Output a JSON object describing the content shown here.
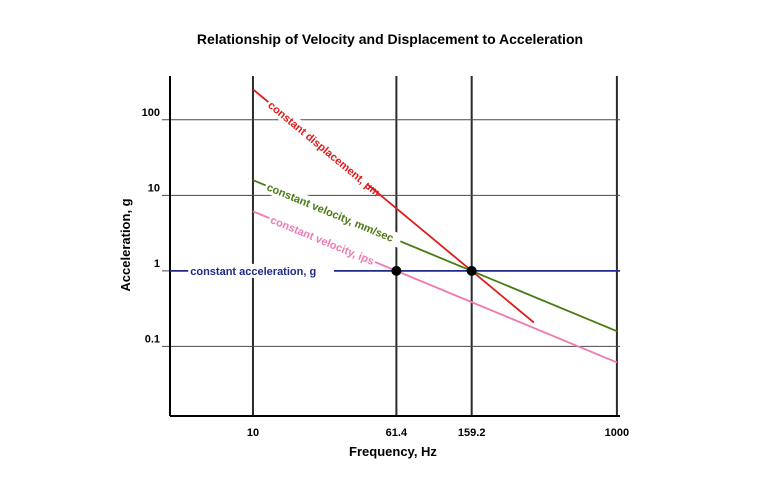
{
  "chart_data": {
    "type": "line",
    "title": "Relationship of Velocity and Displacement to Acceleration",
    "xlabel": "Frequency, Hz",
    "ylabel": "Acceleration, g",
    "x_scale": "log",
    "y_scale": "log",
    "xlim": [
      3.5,
      1040
    ],
    "ylim": [
      0.012,
      380
    ],
    "x_ticks": [
      {
        "value": 10,
        "label": "10"
      },
      {
        "value": 61.4,
        "label": "61.4"
      },
      {
        "value": 159.2,
        "label": "159.2"
      },
      {
        "value": 1000,
        "label": "1000"
      }
    ],
    "y_ticks": [
      {
        "value": 100,
        "label": "100"
      },
      {
        "value": 10,
        "label": "10"
      },
      {
        "value": 1,
        "label": "1"
      },
      {
        "value": 0.1,
        "label": "0.1"
      }
    ],
    "grid": true,
    "series": [
      {
        "name": "constant displacement, μm",
        "color": "#e01b1b",
        "x": [
          10,
          350
        ],
        "y": [
          253,
          0.207
        ]
      },
      {
        "name": "constant velocity, mm/sec",
        "color": "#4a7a12",
        "x": [
          10,
          1000
        ],
        "y": [
          15.9,
          0.159
        ]
      },
      {
        "name": "constant velocity, ips",
        "color": "#ef7ab2",
        "x": [
          10,
          1000
        ],
        "y": [
          6.14,
          0.0614
        ]
      },
      {
        "name": "constant acceleration, g",
        "color": "#1f2a8a",
        "x": [
          3.5,
          1040
        ],
        "y": [
          1,
          1
        ]
      }
    ],
    "points": [
      {
        "x": 61.4,
        "y": 1
      },
      {
        "x": 159.2,
        "y": 1
      }
    ]
  }
}
